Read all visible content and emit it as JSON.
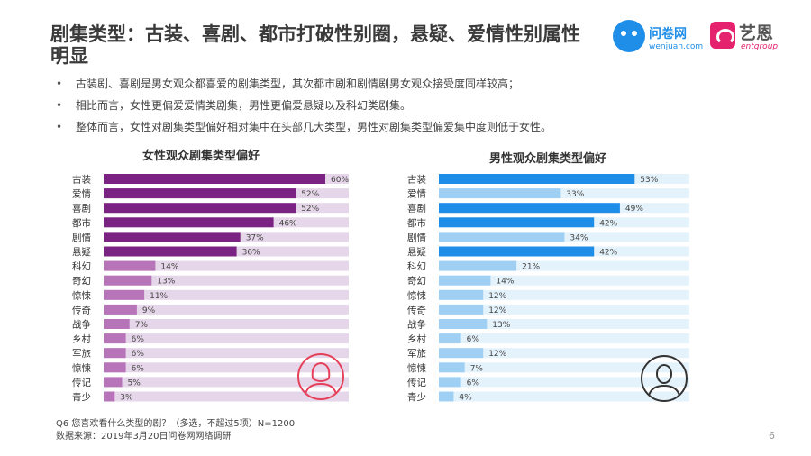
{
  "title": "剧集类型：古装、喜剧、都市打破性别圈，悬疑、爱情性别属性明显",
  "logos": {
    "wenjuan_name": "问卷网",
    "wenjuan_url": "wenjuan.com",
    "yien_name": "艺恩",
    "yien_sub": "entgroup"
  },
  "bullets": [
    "古装剧、喜剧是男女观众都喜爱的剧集类型，其次都市剧和剧情剧男女观众接受度同样较高；",
    "相比而言，女性更偏爱爱情类剧集，男性更偏爱悬疑以及科幻类剧集。",
    "整体而言，女性对剧集类型偏好相对集中在头部几大类型，男性对剧集类型偏爱集中度则低于女性。"
  ],
  "footer": {
    "question": "Q6 您喜欢看什么类型的剧？（多选，不超过5项）N=1200",
    "source": "数据来源：2019年3月20日问卷网网络调研"
  },
  "page_number": "6",
  "colors": {
    "female_dark": "#7b2382",
    "female_light": "#b774b9",
    "female_track": "#e6d6e9",
    "male_dark": "#1e8de8",
    "male_light": "#9fd0f4",
    "male_track": "#e4f2fb",
    "female_icon": "#e5405a",
    "male_icon": "#333333"
  },
  "icons": {
    "female": "female-user-icon",
    "male": "male-user-icon"
  },
  "chart_data": [
    {
      "type": "bar",
      "orientation": "horizontal",
      "title": "女性观众剧集类型偏好",
      "categories": [
        "古装",
        "爱情",
        "喜剧",
        "都市",
        "剧情",
        "悬疑",
        "科幻",
        "奇幻",
        "惊悚",
        "传奇",
        "战争",
        "乡村",
        "军旅",
        "惊悚",
        "传记",
        "青少"
      ],
      "values": [
        60,
        52,
        52,
        46,
        37,
        36,
        14,
        13,
        11,
        9,
        7,
        6,
        6,
        6,
        5,
        3
      ],
      "value_suffix": "%",
      "highlighted_count": 6,
      "xlim": [
        0,
        100
      ]
    },
    {
      "type": "bar",
      "orientation": "horizontal",
      "title": "男性观众剧集类型偏好",
      "categories": [
        "古装",
        "爱情",
        "喜剧",
        "都市",
        "剧情",
        "悬疑",
        "科幻",
        "奇幻",
        "惊悚",
        "传奇",
        "战争",
        "乡村",
        "军旅",
        "惊悚",
        "传记",
        "青少"
      ],
      "values": [
        53,
        33,
        49,
        42,
        34,
        42,
        21,
        14,
        12,
        12,
        13,
        6,
        12,
        7,
        6,
        4
      ],
      "value_suffix": "%",
      "highlighted": [
        0,
        2,
        3,
        5
      ],
      "xlim": [
        0,
        100
      ]
    }
  ]
}
